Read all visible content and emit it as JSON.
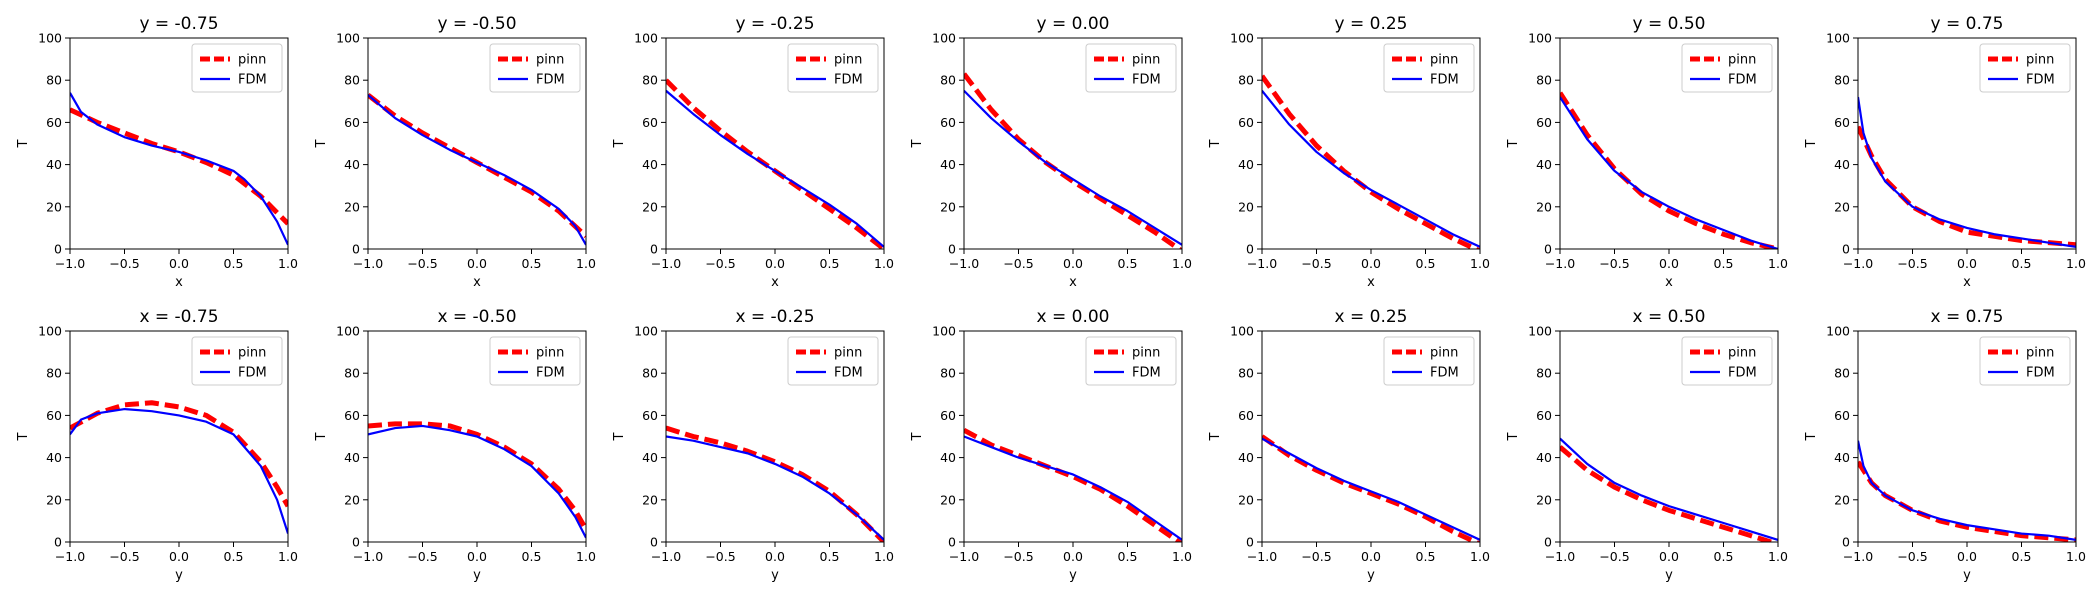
{
  "chart_data": [
    {
      "type": "line",
      "title": "y = -0.75",
      "xlabel": "x",
      "ylabel": "T",
      "xlim": [
        -1,
        1
      ],
      "ylim": [
        0,
        100
      ],
      "xticks": [
        "−1.0",
        "−0.5",
        "0.0",
        "0.5",
        "1.0"
      ],
      "yticks": [
        "0",
        "20",
        "40",
        "60",
        "80",
        "100"
      ],
      "legend": "top-right",
      "series": [
        {
          "name": "pinn",
          "color": "#ff0000",
          "style": "dashed",
          "x": [
            -1,
            -0.75,
            -0.5,
            -0.25,
            0,
            0.25,
            0.5,
            0.75,
            1
          ],
          "y": [
            66,
            60,
            55,
            50,
            46,
            41,
            35,
            25,
            12
          ]
        },
        {
          "name": "FDM",
          "color": "#0000ff",
          "style": "solid",
          "x": [
            -1,
            -0.9,
            -0.75,
            -0.5,
            -0.25,
            0,
            0.25,
            0.5,
            0.6,
            0.75,
            0.9,
            1
          ],
          "y": [
            74,
            65,
            59,
            53,
            49,
            46,
            42,
            37,
            33,
            25,
            13,
            2
          ]
        }
      ]
    },
    {
      "type": "line",
      "title": "y = -0.50",
      "xlabel": "x",
      "ylabel": "T",
      "xlim": [
        -1,
        1
      ],
      "ylim": [
        0,
        100
      ],
      "xticks": [
        "−1.0",
        "−0.5",
        "0.0",
        "0.5",
        "1.0"
      ],
      "yticks": [
        "0",
        "20",
        "40",
        "60",
        "80",
        "100"
      ],
      "legend": "top-right",
      "series": [
        {
          "name": "pinn",
          "color": "#ff0000",
          "style": "dashed",
          "x": [
            -1,
            -0.75,
            -0.5,
            -0.25,
            0,
            0.25,
            0.5,
            0.75,
            1
          ],
          "y": [
            73,
            63,
            55,
            48,
            41,
            34,
            27,
            18,
            6
          ]
        },
        {
          "name": "FDM",
          "color": "#0000ff",
          "style": "solid",
          "x": [
            -1,
            -0.75,
            -0.5,
            -0.25,
            0,
            0.25,
            0.5,
            0.75,
            0.9,
            1
          ],
          "y": [
            73,
            62,
            54,
            47,
            41,
            35,
            28,
            19,
            11,
            2
          ]
        }
      ]
    },
    {
      "type": "line",
      "title": "y = -0.25",
      "xlabel": "x",
      "ylabel": "T",
      "xlim": [
        -1,
        1
      ],
      "ylim": [
        0,
        100
      ],
      "xticks": [
        "−1.0",
        "−0.5",
        "0.0",
        "0.5",
        "1.0"
      ],
      "yticks": [
        "0",
        "20",
        "40",
        "60",
        "80",
        "100"
      ],
      "legend": "top-right",
      "series": [
        {
          "name": "pinn",
          "color": "#ff0000",
          "style": "dashed",
          "x": [
            -1,
            -0.75,
            -0.5,
            -0.25,
            0,
            0.25,
            0.5,
            0.75,
            1
          ],
          "y": [
            80,
            67,
            56,
            46,
            37,
            28,
            19,
            10,
            0
          ]
        },
        {
          "name": "FDM",
          "color": "#0000ff",
          "style": "solid",
          "x": [
            -1,
            -0.75,
            -0.5,
            -0.25,
            0,
            0.25,
            0.5,
            0.75,
            1
          ],
          "y": [
            75,
            64,
            54,
            45,
            37,
            29,
            21,
            12,
            1
          ]
        }
      ]
    },
    {
      "type": "line",
      "title": "y = 0.00",
      "xlabel": "x",
      "ylabel": "T",
      "xlim": [
        -1,
        1
      ],
      "ylim": [
        0,
        100
      ],
      "xticks": [
        "−1.0",
        "−0.5",
        "0.0",
        "0.5",
        "1.0"
      ],
      "yticks": [
        "0",
        "20",
        "40",
        "60",
        "80",
        "100"
      ],
      "legend": "top-right",
      "series": [
        {
          "name": "pinn",
          "color": "#ff0000",
          "style": "dashed",
          "x": [
            -1,
            -0.75,
            -0.5,
            -0.25,
            0,
            0.25,
            0.5,
            0.75,
            1
          ],
          "y": [
            83,
            66,
            52,
            41,
            32,
            24,
            16,
            8,
            -1
          ]
        },
        {
          "name": "FDM",
          "color": "#0000ff",
          "style": "solid",
          "x": [
            -1,
            -0.75,
            -0.5,
            -0.25,
            0,
            0.25,
            0.5,
            0.75,
            1
          ],
          "y": [
            75,
            62,
            51,
            41,
            33,
            25,
            18,
            10,
            2
          ]
        }
      ]
    },
    {
      "type": "line",
      "title": "y = 0.25",
      "xlabel": "x",
      "ylabel": "T",
      "xlim": [
        -1,
        1
      ],
      "ylim": [
        0,
        100
      ],
      "xticks": [
        "−1.0",
        "−0.5",
        "0.0",
        "0.5",
        "1.0"
      ],
      "yticks": [
        "0",
        "20",
        "40",
        "60",
        "80",
        "100"
      ],
      "legend": "top-right",
      "series": [
        {
          "name": "pinn",
          "color": "#ff0000",
          "style": "dashed",
          "x": [
            -1,
            -0.75,
            -0.5,
            -0.25,
            0,
            0.25,
            0.5,
            0.75,
            1
          ],
          "y": [
            82,
            64,
            49,
            37,
            27,
            19,
            12,
            5,
            -1
          ]
        },
        {
          "name": "FDM",
          "color": "#0000ff",
          "style": "solid",
          "x": [
            -1,
            -0.75,
            -0.5,
            -0.25,
            0,
            0.25,
            0.5,
            0.75,
            1
          ],
          "y": [
            75,
            59,
            46,
            36,
            28,
            21,
            14,
            7,
            1
          ]
        }
      ]
    },
    {
      "type": "line",
      "title": "y = 0.50",
      "xlabel": "x",
      "ylabel": "T",
      "xlim": [
        -1,
        1
      ],
      "ylim": [
        0,
        100
      ],
      "xticks": [
        "−1.0",
        "−0.5",
        "0.0",
        "0.5",
        "1.0"
      ],
      "yticks": [
        "0",
        "20",
        "40",
        "60",
        "80",
        "100"
      ],
      "legend": "top-right",
      "series": [
        {
          "name": "pinn",
          "color": "#ff0000",
          "style": "dashed",
          "x": [
            -1,
            -0.75,
            -0.5,
            -0.25,
            0,
            0.25,
            0.5,
            0.75,
            1
          ],
          "y": [
            74,
            54,
            38,
            26,
            18,
            12,
            7,
            3,
            0
          ]
        },
        {
          "name": "FDM",
          "color": "#0000ff",
          "style": "solid",
          "x": [
            -1,
            -0.75,
            -0.5,
            -0.25,
            0,
            0.25,
            0.5,
            0.75,
            1
          ],
          "y": [
            72,
            52,
            37,
            27,
            20,
            14,
            9,
            4,
            0
          ]
        }
      ]
    },
    {
      "type": "line",
      "title": "y = 0.75",
      "xlabel": "x",
      "ylabel": "T",
      "xlim": [
        -1,
        1
      ],
      "ylim": [
        0,
        100
      ],
      "xticks": [
        "−1.0",
        "−0.5",
        "0.0",
        "0.5",
        "1.0"
      ],
      "yticks": [
        "0",
        "20",
        "40",
        "60",
        "80",
        "100"
      ],
      "legend": "top-right",
      "series": [
        {
          "name": "pinn",
          "color": "#ff0000",
          "style": "dashed",
          "x": [
            -1,
            -0.875,
            -0.75,
            -0.5,
            -0.25,
            0,
            0.25,
            0.5,
            0.75,
            1
          ],
          "y": [
            58,
            44,
            33,
            20,
            13,
            8,
            6,
            4,
            3,
            2
          ]
        },
        {
          "name": "FDM",
          "color": "#0000ff",
          "style": "solid",
          "x": [
            -1,
            -0.95,
            -0.875,
            -0.75,
            -0.5,
            -0.25,
            0,
            0.25,
            0.5,
            0.75,
            1
          ],
          "y": [
            72,
            55,
            43,
            32,
            20,
            14,
            10,
            7,
            5,
            3,
            1
          ]
        }
      ]
    },
    {
      "type": "line",
      "title": "x = -0.75",
      "xlabel": "y",
      "ylabel": "T",
      "xlim": [
        -1,
        1
      ],
      "ylim": [
        0,
        100
      ],
      "xticks": [
        "−1.0",
        "−0.5",
        "0.0",
        "0.5",
        "1.0"
      ],
      "yticks": [
        "0",
        "20",
        "40",
        "60",
        "80",
        "100"
      ],
      "legend": "top-right",
      "series": [
        {
          "name": "pinn",
          "color": "#ff0000",
          "style": "dashed",
          "x": [
            -1,
            -0.75,
            -0.5,
            -0.25,
            0,
            0.25,
            0.5,
            0.75,
            0.9,
            1
          ],
          "y": [
            54,
            61,
            65,
            66,
            64,
            60,
            52,
            38,
            26,
            17
          ]
        },
        {
          "name": "FDM",
          "color": "#0000ff",
          "style": "solid",
          "x": [
            -1,
            -0.9,
            -0.75,
            -0.5,
            -0.25,
            0,
            0.25,
            0.5,
            0.75,
            0.9,
            1
          ],
          "y": [
            51,
            58,
            61,
            63,
            62,
            60,
            57,
            51,
            36,
            20,
            4
          ]
        }
      ]
    },
    {
      "type": "line",
      "title": "x = -0.50",
      "xlabel": "y",
      "ylabel": "T",
      "xlim": [
        -1,
        1
      ],
      "ylim": [
        0,
        100
      ],
      "xticks": [
        "−1.0",
        "−0.5",
        "0.0",
        "0.5",
        "1.0"
      ],
      "yticks": [
        "0",
        "20",
        "40",
        "60",
        "80",
        "100"
      ],
      "legend": "top-right",
      "series": [
        {
          "name": "pinn",
          "color": "#ff0000",
          "style": "dashed",
          "x": [
            -1,
            -0.75,
            -0.5,
            -0.25,
            0,
            0.25,
            0.5,
            0.75,
            0.9,
            1
          ],
          "y": [
            55,
            56,
            56,
            55,
            51,
            45,
            37,
            25,
            15,
            6
          ]
        },
        {
          "name": "FDM",
          "color": "#0000ff",
          "style": "solid",
          "x": [
            -1,
            -0.75,
            -0.5,
            -0.25,
            0,
            0.25,
            0.5,
            0.75,
            0.9,
            1
          ],
          "y": [
            51,
            54,
            55,
            53,
            50,
            44,
            36,
            23,
            12,
            2
          ]
        }
      ]
    },
    {
      "type": "line",
      "title": "x = -0.25",
      "xlabel": "y",
      "ylabel": "T",
      "xlim": [
        -1,
        1
      ],
      "ylim": [
        0,
        100
      ],
      "xticks": [
        "−1.0",
        "−0.5",
        "0.0",
        "0.5",
        "1.0"
      ],
      "yticks": [
        "0",
        "20",
        "40",
        "60",
        "80",
        "100"
      ],
      "legend": "top-right",
      "series": [
        {
          "name": "pinn",
          "color": "#ff0000",
          "style": "dashed",
          "x": [
            -1,
            -0.75,
            -0.5,
            -0.25,
            0,
            0.25,
            0.5,
            0.75,
            1
          ],
          "y": [
            54,
            50,
            47,
            43,
            38,
            32,
            24,
            13,
            0
          ]
        },
        {
          "name": "FDM",
          "color": "#0000ff",
          "style": "solid",
          "x": [
            -1,
            -0.75,
            -0.5,
            -0.25,
            0,
            0.25,
            0.5,
            0.75,
            1
          ],
          "y": [
            50,
            48,
            45,
            42,
            37,
            31,
            23,
            13,
            1
          ]
        }
      ]
    },
    {
      "type": "line",
      "title": "x = 0.00",
      "xlabel": "y",
      "ylabel": "T",
      "xlim": [
        -1,
        1
      ],
      "ylim": [
        0,
        100
      ],
      "xticks": [
        "−1.0",
        "−0.5",
        "0.0",
        "0.5",
        "1.0"
      ],
      "yticks": [
        "0",
        "20",
        "40",
        "60",
        "80",
        "100"
      ],
      "legend": "top-right",
      "series": [
        {
          "name": "pinn",
          "color": "#ff0000",
          "style": "dashed",
          "x": [
            -1,
            -0.75,
            -0.5,
            -0.25,
            0,
            0.25,
            0.5,
            0.75,
            1
          ],
          "y": [
            53,
            46,
            41,
            36,
            31,
            25,
            17,
            8,
            -1
          ]
        },
        {
          "name": "FDM",
          "color": "#0000ff",
          "style": "solid",
          "x": [
            -1,
            -0.75,
            -0.5,
            -0.25,
            0,
            0.25,
            0.5,
            0.75,
            1
          ],
          "y": [
            50,
            45,
            40,
            36,
            32,
            26,
            19,
            10,
            1
          ]
        }
      ]
    },
    {
      "type": "line",
      "title": "x = 0.25",
      "xlabel": "y",
      "ylabel": "T",
      "xlim": [
        -1,
        1
      ],
      "ylim": [
        0,
        100
      ],
      "xticks": [
        "−1.0",
        "−0.5",
        "0.0",
        "0.5",
        "1.0"
      ],
      "yticks": [
        "0",
        "20",
        "40",
        "60",
        "80",
        "100"
      ],
      "legend": "top-right",
      "series": [
        {
          "name": "pinn",
          "color": "#ff0000",
          "style": "dashed",
          "x": [
            -1,
            -0.75,
            -0.5,
            -0.25,
            0,
            0.25,
            0.5,
            0.75,
            1
          ],
          "y": [
            50,
            41,
            34,
            28,
            23,
            18,
            12,
            5,
            -1
          ]
        },
        {
          "name": "FDM",
          "color": "#0000ff",
          "style": "solid",
          "x": [
            -1,
            -0.75,
            -0.5,
            -0.25,
            0,
            0.25,
            0.5,
            0.75,
            1
          ],
          "y": [
            49,
            42,
            35,
            29,
            24,
            19,
            13,
            7,
            1
          ]
        }
      ]
    },
    {
      "type": "line",
      "title": "x = 0.50",
      "xlabel": "y",
      "ylabel": "T",
      "xlim": [
        -1,
        1
      ],
      "ylim": [
        0,
        100
      ],
      "xticks": [
        "−1.0",
        "−0.5",
        "0.0",
        "0.5",
        "1.0"
      ],
      "yticks": [
        "0",
        "20",
        "40",
        "60",
        "80",
        "100"
      ],
      "legend": "top-right",
      "series": [
        {
          "name": "pinn",
          "color": "#ff0000",
          "style": "dashed",
          "x": [
            -1,
            -0.75,
            -0.5,
            -0.25,
            0,
            0.25,
            0.5,
            0.75,
            1
          ],
          "y": [
            45,
            34,
            26,
            20,
            15,
            11,
            7,
            3,
            -1
          ]
        },
        {
          "name": "FDM",
          "color": "#0000ff",
          "style": "solid",
          "x": [
            -1,
            -0.75,
            -0.5,
            -0.25,
            0,
            0.25,
            0.5,
            0.75,
            1
          ],
          "y": [
            49,
            37,
            28,
            22,
            17,
            13,
            9,
            5,
            1
          ]
        }
      ]
    },
    {
      "type": "line",
      "title": "x = 0.75",
      "xlabel": "y",
      "ylabel": "T",
      "xlim": [
        -1,
        1
      ],
      "ylim": [
        0,
        100
      ],
      "xticks": [
        "−1.0",
        "−0.5",
        "0.0",
        "0.5",
        "1.0"
      ],
      "yticks": [
        "0",
        "20",
        "40",
        "60",
        "80",
        "100"
      ],
      "legend": "top-right",
      "series": [
        {
          "name": "pinn",
          "color": "#ff0000",
          "style": "dashed",
          "x": [
            -1,
            -0.875,
            -0.75,
            -0.5,
            -0.25,
            0,
            0.25,
            0.5,
            0.75,
            1
          ],
          "y": [
            38,
            28,
            22,
            15,
            10,
            7,
            5,
            3,
            2,
            1
          ]
        },
        {
          "name": "FDM",
          "color": "#0000ff",
          "style": "solid",
          "x": [
            -1,
            -0.95,
            -0.875,
            -0.75,
            -0.5,
            -0.25,
            0,
            0.25,
            0.5,
            0.75,
            1
          ],
          "y": [
            48,
            36,
            28,
            22,
            15,
            11,
            8,
            6,
            4,
            3,
            1
          ]
        }
      ]
    }
  ]
}
